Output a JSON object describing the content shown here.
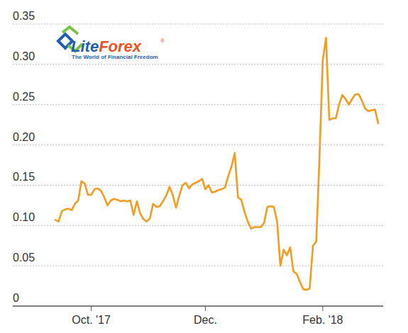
{
  "chart_data": {
    "type": "line",
    "categories": [
      null,
      null,
      null,
      null,
      null,
      null,
      null,
      null,
      null,
      null,
      null,
      "Oct. '17",
      null,
      null,
      null,
      null,
      null,
      null,
      null,
      null,
      null,
      null,
      null,
      null,
      null,
      null,
      null,
      null,
      null,
      null,
      null,
      null,
      null,
      null,
      null,
      null,
      null,
      null,
      null,
      null,
      null,
      null,
      null,
      null,
      null,
      null,
      "Dec.",
      null,
      null,
      null,
      null,
      null,
      null,
      null,
      null,
      null,
      null,
      null,
      null,
      null,
      null,
      null,
      null,
      null,
      null,
      null,
      null,
      null,
      null,
      null,
      null,
      null,
      null,
      null,
      null,
      null,
      null,
      null,
      null,
      null,
      null,
      null,
      "Feb. '18",
      null,
      null,
      null,
      null,
      null,
      null,
      null,
      null,
      null,
      null,
      null,
      null,
      null,
      null,
      null,
      null,
      null
    ],
    "values": [
      0.107,
      0.105,
      0.118,
      0.12,
      0.121,
      0.119,
      0.127,
      0.131,
      0.155,
      0.152,
      0.138,
      0.138,
      0.145,
      0.146,
      0.143,
      0.135,
      0.125,
      0.131,
      0.133,
      0.132,
      0.13,
      0.131,
      0.13,
      0.131,
      0.113,
      0.13,
      0.115,
      0.108,
      0.105,
      0.109,
      0.127,
      0.123,
      0.124,
      0.13,
      0.137,
      0.148,
      0.138,
      0.122,
      0.137,
      0.15,
      0.153,
      0.146,
      0.151,
      0.153,
      0.155,
      0.158,
      0.145,
      0.15,
      0.141,
      0.142,
      0.144,
      0.145,
      0.147,
      0.161,
      0.173,
      0.19,
      0.135,
      0.132,
      0.117,
      0.105,
      0.096,
      0.098,
      0.098,
      0.098,
      0.103,
      0.123,
      0.124,
      0.123,
      0.105,
      0.05,
      0.07,
      0.063,
      0.073,
      0.043,
      0.04,
      0.03,
      0.021,
      0.02,
      0.022,
      0.075,
      0.08,
      0.185,
      0.305,
      0.333,
      0.231,
      0.233,
      0.233,
      0.25,
      0.262,
      0.257,
      0.25,
      0.257,
      0.263,
      0.263,
      0.255,
      0.245,
      0.242,
      0.243,
      0.244,
      0.227
    ],
    "color": "#f39c1f",
    "ylim": [
      0,
      0.35
    ],
    "yticks": [
      0,
      0.05,
      {
        "value": 0.1,
        "label": "0.10"
      },
      0.15,
      {
        "value": 0.2,
        "label": "0.20"
      },
      0.25,
      {
        "value": 0.3,
        "label": "0.30"
      },
      0.35
    ],
    "grid": true
  },
  "logo": {
    "brand_first": "Lite",
    "brand_second": "Forex",
    "registered": "®",
    "tagline": "The World of Financial Freedom"
  }
}
